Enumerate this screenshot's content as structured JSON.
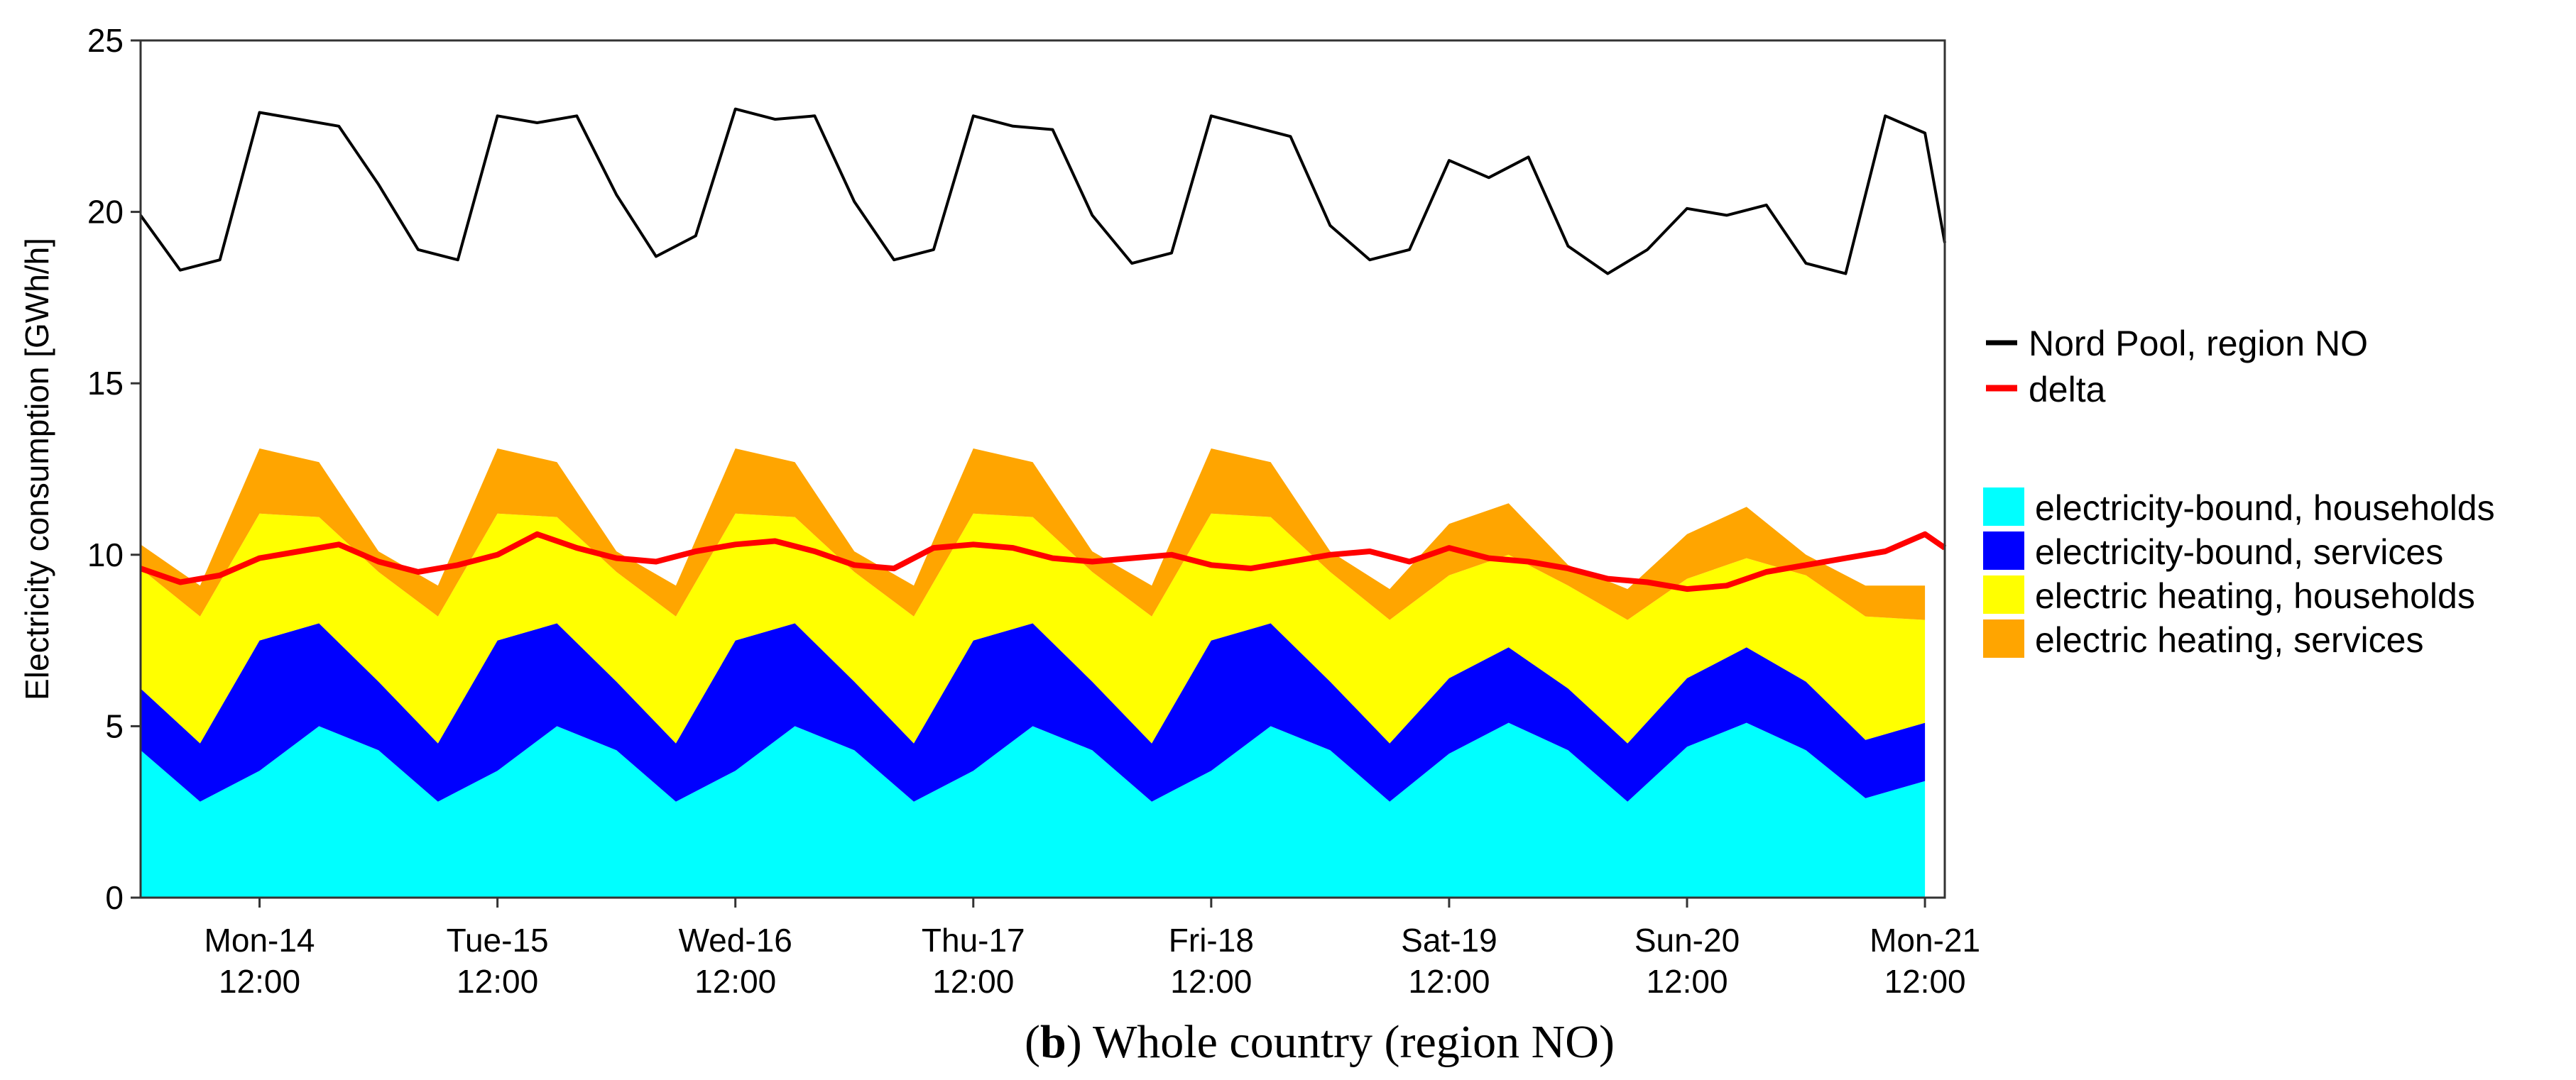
{
  "chart_data": {
    "type": "area",
    "stacked": true,
    "ylabel": "Electricity consumption [GWh/h]",
    "xlabel": "",
    "ylim": [
      0,
      25
    ],
    "yticks": [
      "0",
      "5",
      "10",
      "15",
      "20",
      "25"
    ],
    "xlim": [
      0,
      182
    ],
    "grid": false,
    "xticks": [
      {
        "day": "Mon-14",
        "time": "12:00"
      },
      {
        "day": "Tue-15",
        "time": "12:00"
      },
      {
        "day": "Wed-16",
        "time": "12:00"
      },
      {
        "day": "Thu-17",
        "time": "12:00"
      },
      {
        "day": "Fri-18",
        "time": "12:00"
      },
      {
        "day": "Sat-19",
        "time": "12:00"
      },
      {
        "day": "Sun-20",
        "time": "12:00"
      },
      {
        "day": "Mon-21",
        "time": "12:00"
      }
    ],
    "caption_letter": "b",
    "caption_text": "Whole country (region NO)",
    "x_hours": [
      0,
      6,
      12,
      18,
      24,
      30,
      36,
      42,
      48,
      54,
      60,
      66,
      72,
      78,
      84,
      90,
      96,
      102,
      108,
      114,
      120,
      126,
      132,
      138,
      144,
      150,
      156,
      162,
      168,
      174,
      180
    ],
    "stack_series": [
      {
        "name": "electricity-bound, households",
        "color": "#00FFFF",
        "values": [
          4.3,
          2.8,
          3.7,
          5.0,
          4.3,
          2.8,
          3.7,
          5.0,
          4.3,
          2.8,
          3.7,
          5.0,
          4.3,
          2.8,
          3.7,
          5.0,
          4.3,
          2.8,
          3.7,
          5.0,
          4.3,
          2.8,
          4.2,
          5.1,
          4.3,
          2.8,
          4.4,
          5.1,
          4.3,
          2.9,
          3.4
        ]
      },
      {
        "name": "electricity-bound, services",
        "color": "#0000FF",
        "values": [
          1.8,
          1.7,
          3.8,
          3.0,
          2.0,
          1.7,
          3.8,
          3.0,
          2.0,
          1.7,
          3.8,
          3.0,
          2.0,
          1.7,
          3.8,
          3.0,
          2.0,
          1.7,
          3.8,
          3.0,
          2.0,
          1.7,
          2.2,
          2.2,
          1.8,
          1.7,
          2.0,
          2.2,
          2.0,
          1.7,
          1.7
        ]
      },
      {
        "name": "electric heating, households",
        "color": "#FFFF00",
        "values": [
          3.5,
          3.7,
          3.7,
          3.1,
          3.2,
          3.7,
          3.7,
          3.1,
          3.2,
          3.7,
          3.7,
          3.1,
          3.2,
          3.7,
          3.7,
          3.1,
          3.2,
          3.7,
          3.7,
          3.1,
          3.2,
          3.6,
          3.0,
          2.7,
          3.0,
          3.6,
          2.9,
          2.6,
          3.1,
          3.6,
          3.0
        ]
      },
      {
        "name": "electric heating, services",
        "color": "#FFA500",
        "values": [
          0.7,
          0.9,
          1.9,
          1.6,
          0.6,
          0.9,
          1.9,
          1.6,
          0.6,
          0.9,
          1.9,
          1.6,
          0.6,
          0.9,
          1.9,
          1.6,
          0.6,
          0.9,
          1.9,
          1.6,
          0.6,
          0.9,
          1.5,
          1.5,
          0.6,
          0.9,
          1.3,
          1.5,
          0.6,
          0.9,
          1.0
        ]
      }
    ],
    "line_series": [
      {
        "name": "Nord Pool, region NO",
        "color": "#000000",
        "x": [
          0,
          4,
          8,
          12,
          16,
          20,
          24,
          28,
          32,
          36,
          40,
          44,
          48,
          52,
          56,
          60,
          64,
          68,
          72,
          76,
          80,
          84,
          88,
          92,
          96,
          100,
          104,
          108,
          112,
          116,
          120,
          124,
          128,
          132,
          136,
          140,
          144,
          148,
          152,
          156,
          160,
          164,
          168,
          172,
          176,
          180,
          182
        ],
        "values": [
          19.9,
          18.3,
          18.6,
          22.9,
          22.7,
          22.5,
          20.8,
          18.9,
          18.6,
          22.8,
          22.6,
          22.8,
          20.5,
          18.7,
          19.3,
          23.0,
          22.7,
          22.8,
          20.3,
          18.6,
          18.9,
          22.8,
          22.5,
          22.4,
          19.9,
          18.5,
          18.8,
          22.8,
          22.5,
          22.2,
          19.6,
          18.6,
          18.9,
          21.5,
          21.0,
          21.6,
          19.0,
          18.2,
          18.9,
          20.1,
          19.9,
          20.2,
          18.5,
          18.2,
          22.8,
          22.3,
          19.1
        ]
      },
      {
        "name": "delta",
        "color": "#FF0000",
        "x": [
          0,
          4,
          8,
          12,
          16,
          20,
          24,
          28,
          32,
          36,
          40,
          44,
          48,
          52,
          56,
          60,
          64,
          68,
          72,
          76,
          80,
          84,
          88,
          92,
          96,
          100,
          104,
          108,
          112,
          116,
          120,
          124,
          128,
          132,
          136,
          140,
          144,
          148,
          152,
          156,
          160,
          164,
          168,
          172,
          176,
          180,
          182
        ],
        "values": [
          9.6,
          9.2,
          9.4,
          9.9,
          10.1,
          10.3,
          9.8,
          9.5,
          9.7,
          10.0,
          10.6,
          10.2,
          9.9,
          9.8,
          10.1,
          10.3,
          10.4,
          10.1,
          9.7,
          9.6,
          10.2,
          10.3,
          10.2,
          9.9,
          9.8,
          9.9,
          10.0,
          9.7,
          9.6,
          9.8,
          10.0,
          10.1,
          9.8,
          10.2,
          9.9,
          9.8,
          9.6,
          9.3,
          9.2,
          9.0,
          9.1,
          9.5,
          9.7,
          9.9,
          10.1,
          10.6,
          10.2
        ]
      }
    ]
  }
}
